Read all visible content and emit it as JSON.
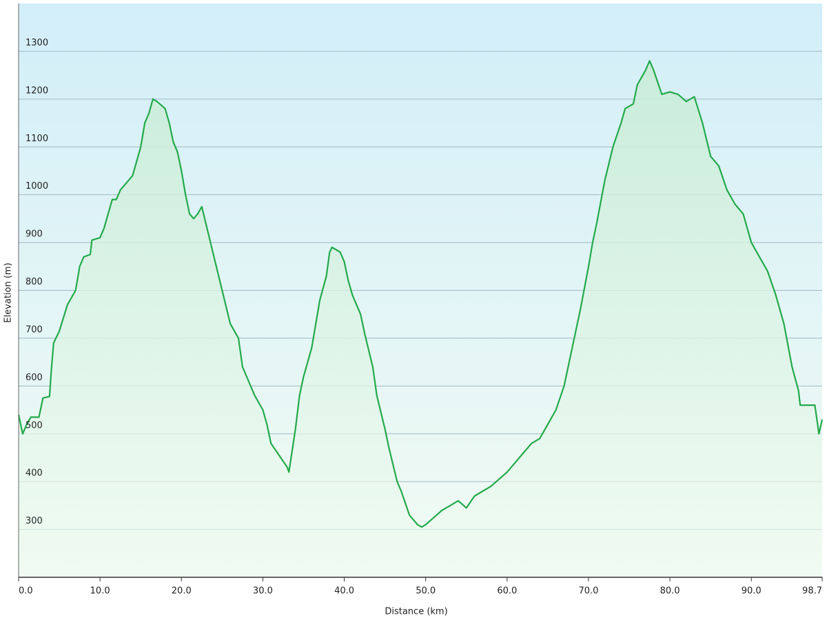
{
  "chart_data": {
    "type": "area",
    "x_label": "Distance  (km)",
    "y_label": "Elevation (m)",
    "color": "#22a94a",
    "x": [
      0,
      0.5,
      1,
      1.5,
      2.5,
      3,
      3.8,
      4,
      4.3,
      5,
      6,
      7,
      7.5,
      8,
      8.8,
      9,
      10,
      10.5,
      11,
      11.5,
      12,
      12.5,
      13,
      14,
      15,
      15.5,
      16,
      16.5,
      17,
      18,
      18.5,
      19,
      19.5,
      20,
      20.5,
      21,
      21.5,
      22,
      22.5,
      23,
      24,
      25,
      26,
      27,
      27.5,
      28.5,
      29,
      30,
      30.5,
      31,
      32,
      33,
      33.2,
      34,
      34.5,
      35,
      36,
      36.5,
      37,
      37.8,
      38.2,
      38.5,
      39.5,
      40,
      40.5,
      41,
      42,
      42.5,
      43.5,
      44,
      45,
      45.5,
      46.5,
      47,
      48,
      49,
      49.5,
      50,
      52,
      53,
      54,
      55,
      56,
      57,
      58,
      59,
      60,
      61,
      62,
      63,
      64,
      65,
      66,
      67,
      68,
      69,
      70,
      70.5,
      71,
      72,
      73,
      74,
      74.5,
      75.5,
      76,
      77,
      77.5,
      78,
      79,
      80,
      81,
      82,
      83,
      84,
      85,
      86,
      87,
      88,
      89,
      90,
      91,
      92,
      93,
      94,
      95,
      95.8,
      96,
      97,
      97.8,
      98.3,
      98.7
    ],
    "values": [
      540,
      500,
      520,
      535,
      535,
      575,
      578,
      630,
      690,
      715,
      770,
      800,
      850,
      870,
      875,
      905,
      910,
      930,
      960,
      990,
      990,
      1010,
      1020,
      1040,
      1100,
      1150,
      1170,
      1200,
      1195,
      1180,
      1150,
      1110,
      1090,
      1050,
      1000,
      960,
      950,
      960,
      975,
      940,
      870,
      800,
      730,
      700,
      640,
      600,
      580,
      550,
      520,
      480,
      455,
      430,
      420,
      510,
      580,
      620,
      680,
      730,
      780,
      830,
      880,
      890,
      880,
      860,
      820,
      790,
      750,
      710,
      640,
      580,
      510,
      470,
      400,
      380,
      330,
      310,
      305,
      310,
      340,
      350,
      360,
      345,
      370,
      380,
      390,
      405,
      420,
      440,
      460,
      480,
      490,
      520,
      550,
      600,
      680,
      760,
      850,
      900,
      940,
      1030,
      1100,
      1150,
      1180,
      1190,
      1230,
      1260,
      1280,
      1260,
      1210,
      1215,
      1210,
      1195,
      1205,
      1150,
      1080,
      1060,
      1010,
      980,
      960,
      900,
      870,
      840,
      790,
      730,
      640,
      590,
      560,
      560,
      560,
      500,
      530
    ],
    "xlim": [
      0,
      98.7
    ],
    "xticks": [
      {
        "value": 0,
        "label": "0.0"
      },
      {
        "value": 10,
        "label": "10.0"
      },
      {
        "value": 20,
        "label": "20.0"
      },
      {
        "value": 30,
        "label": "30.0"
      },
      {
        "value": 40,
        "label": "40.0"
      },
      {
        "value": 50,
        "label": "50.0"
      },
      {
        "value": 60,
        "label": "60.0"
      },
      {
        "value": 70,
        "label": "70.0"
      },
      {
        "value": 80,
        "label": "80.0"
      },
      {
        "value": 90,
        "label": "90.0"
      },
      98.7
    ],
    "ylim": [
      200,
      1400
    ],
    "yticks": [
      300,
      400,
      500,
      600,
      700,
      800,
      900,
      1000,
      1100,
      1200,
      1300
    ],
    "grid": true
  }
}
